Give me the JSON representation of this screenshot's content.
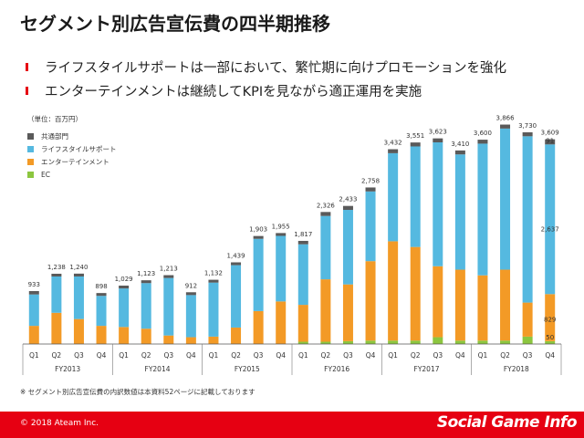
{
  "title": "セグメント別広告宣伝費の四半期推移",
  "bullets": [
    "ライフスタイルサポートは一部において、繁忙期に向けプロモーションを強化",
    "エンターテインメントは継続してKPIを見ながら適正運用を実施"
  ],
  "unit_label": "（単位：百万円）",
  "colors": {
    "common": "#5a5a5a",
    "lifestyle": "#55b9e0",
    "entertainment": "#f39a26",
    "ec": "#8cc63f",
    "accent": "#e60012"
  },
  "footnote": "※ セグメント別広告宣伝費の内訳数値は本資料52ページに記載しております",
  "footer": {
    "copyright": "© 2018 Ateam Inc.",
    "watermark": "Social Game Info"
  },
  "chart_data": {
    "type": "bar",
    "stacked": true,
    "legend_position": "top-left",
    "categories": [
      "Q1",
      "Q2",
      "Q3",
      "Q4",
      "Q1",
      "Q2",
      "Q3",
      "Q4",
      "Q1",
      "Q2",
      "Q3",
      "Q4",
      "Q1",
      "Q2",
      "Q3",
      "Q4",
      "Q1",
      "Q2",
      "Q3",
      "Q4",
      "Q1",
      "Q2",
      "Q3",
      "Q4"
    ],
    "groups": [
      {
        "label": "FY2013",
        "count": 4
      },
      {
        "label": "FY2014",
        "count": 4
      },
      {
        "label": "FY2015",
        "count": 4
      },
      {
        "label": "FY2016",
        "count": 4
      },
      {
        "label": "FY2017",
        "count": 4
      },
      {
        "label": "FY2018",
        "count": 4
      }
    ],
    "totals": [
      933,
      1238,
      1240,
      898,
      1029,
      1123,
      1213,
      912,
      1132,
      1439,
      1903,
      1955,
      1817,
      2326,
      2433,
      2758,
      3432,
      3551,
      3623,
      3410,
      3600,
      3866,
      3730,
      3609
    ],
    "series": [
      {
        "name": "EC",
        "key": "ec",
        "values": [
          0,
          0,
          0,
          0,
          0,
          0,
          0,
          0,
          0,
          0,
          0,
          0,
          40,
          40,
          50,
          60,
          60,
          60,
          120,
          60,
          60,
          60,
          130,
          50
        ]
      },
      {
        "name": "エンターテインメント",
        "key": "entertainment",
        "values": [
          320,
          550,
          440,
          320,
          300,
          270,
          150,
          120,
          130,
          290,
          580,
          750,
          650,
          1100,
          1000,
          1400,
          1750,
          1650,
          1250,
          1250,
          1150,
          1250,
          600,
          829
        ]
      },
      {
        "name": "ライフスタイルサポート",
        "key": "lifestyle",
        "values": [
          553,
          640,
          750,
          528,
          679,
          803,
          1013,
          742,
          952,
          1099,
          1273,
          1155,
          1067,
          1116,
          1313,
          1228,
          1552,
          1771,
          2183,
          2030,
          2320,
          2486,
          2930,
          2637
        ]
      },
      {
        "name": "共通部門",
        "key": "common",
        "values": [
          60,
          48,
          50,
          50,
          50,
          50,
          50,
          50,
          50,
          50,
          50,
          50,
          60,
          70,
          70,
          70,
          70,
          70,
          70,
          70,
          70,
          70,
          70,
          91
        ]
      }
    ],
    "data_labels": [
      {
        "index": 23,
        "series": "lifestyle",
        "text": "2,637"
      },
      {
        "index": 23,
        "series": "entertainment",
        "text": "829"
      },
      {
        "index": 23,
        "series": "ec",
        "text": "50"
      },
      {
        "index": 23,
        "series": "common",
        "text": "91"
      }
    ],
    "ylim": [
      0,
      4000
    ]
  }
}
